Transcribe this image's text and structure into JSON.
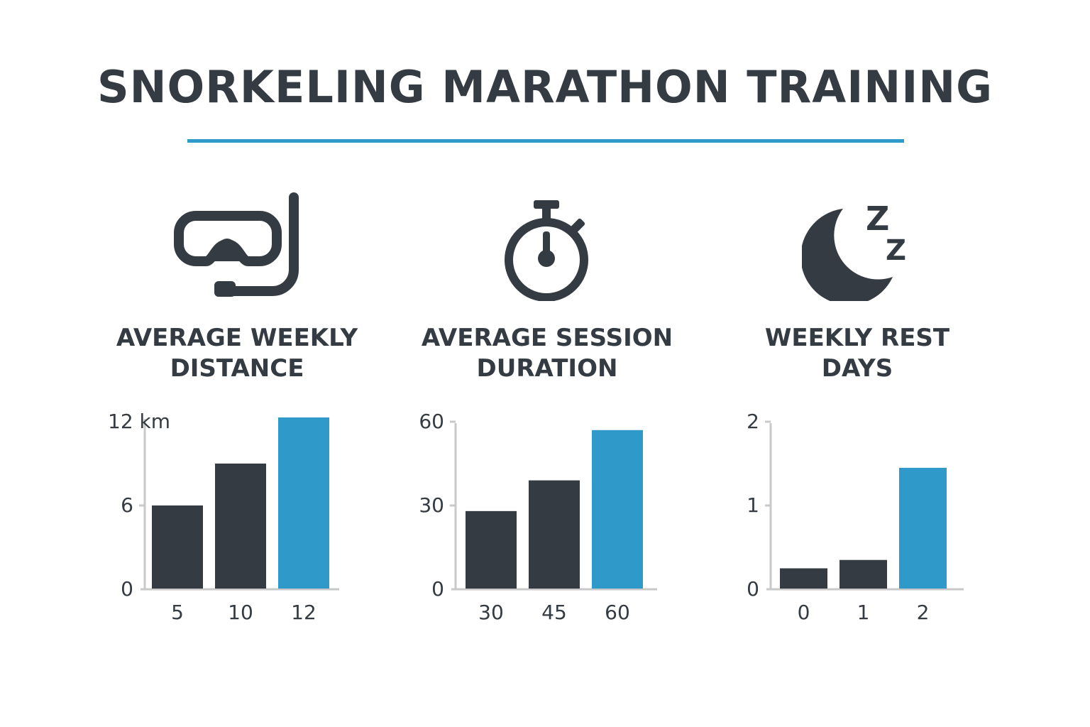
{
  "title": "SNORKELING MARATHON TRAINING",
  "colors": {
    "text": "#353b42",
    "accent": "#2f9ac9",
    "bar_default": "#353b42",
    "axis": "#c9c9c9"
  },
  "panels": [
    {
      "icon": "snorkel-mask-icon",
      "title_lines": [
        "AVERAGE WEEKLY",
        "DISTANCE"
      ]
    },
    {
      "icon": "stopwatch-icon",
      "title_lines": [
        "AVERAGE SESSION",
        "DURATION"
      ]
    },
    {
      "icon": "moon-sleep-icon",
      "zzz": [
        "Z",
        "Z"
      ],
      "title_lines": [
        "WEEKLY REST",
        "DAYS"
      ]
    }
  ],
  "chart_data": [
    {
      "type": "bar",
      "title": "AVERAGE WEEKLY DISTANCE",
      "categories": [
        "5",
        "10",
        "12"
      ],
      "values": [
        6,
        9,
        12.3
      ],
      "highlight_index": 2,
      "yticks": [
        {
          "value": 0,
          "label": "0"
        },
        {
          "value": 6,
          "label": "6"
        },
        {
          "value": 12,
          "label": "12 km"
        }
      ],
      "ylim": [
        0,
        12.3
      ],
      "grid": false
    },
    {
      "type": "bar",
      "title": "AVERAGE SESSION DURATION",
      "categories": [
        "30",
        "45",
        "60"
      ],
      "values": [
        28,
        39,
        57
      ],
      "highlight_index": 2,
      "yticks": [
        {
          "value": 0,
          "label": "0"
        },
        {
          "value": 30,
          "label": "30"
        },
        {
          "value": 60,
          "label": "60"
        }
      ],
      "ylim": [
        0,
        60
      ],
      "grid": false
    },
    {
      "type": "bar",
      "title": "WEEKLY REST DAYS",
      "categories": [
        "0",
        "1",
        "2"
      ],
      "values": [
        0.25,
        0.35,
        1.45
      ],
      "highlight_index": 2,
      "yticks": [
        {
          "value": 0,
          "label": "0"
        },
        {
          "value": 1,
          "label": "1"
        },
        {
          "value": 2,
          "label": "2"
        }
      ],
      "ylim": [
        0,
        2
      ],
      "grid": false
    }
  ]
}
